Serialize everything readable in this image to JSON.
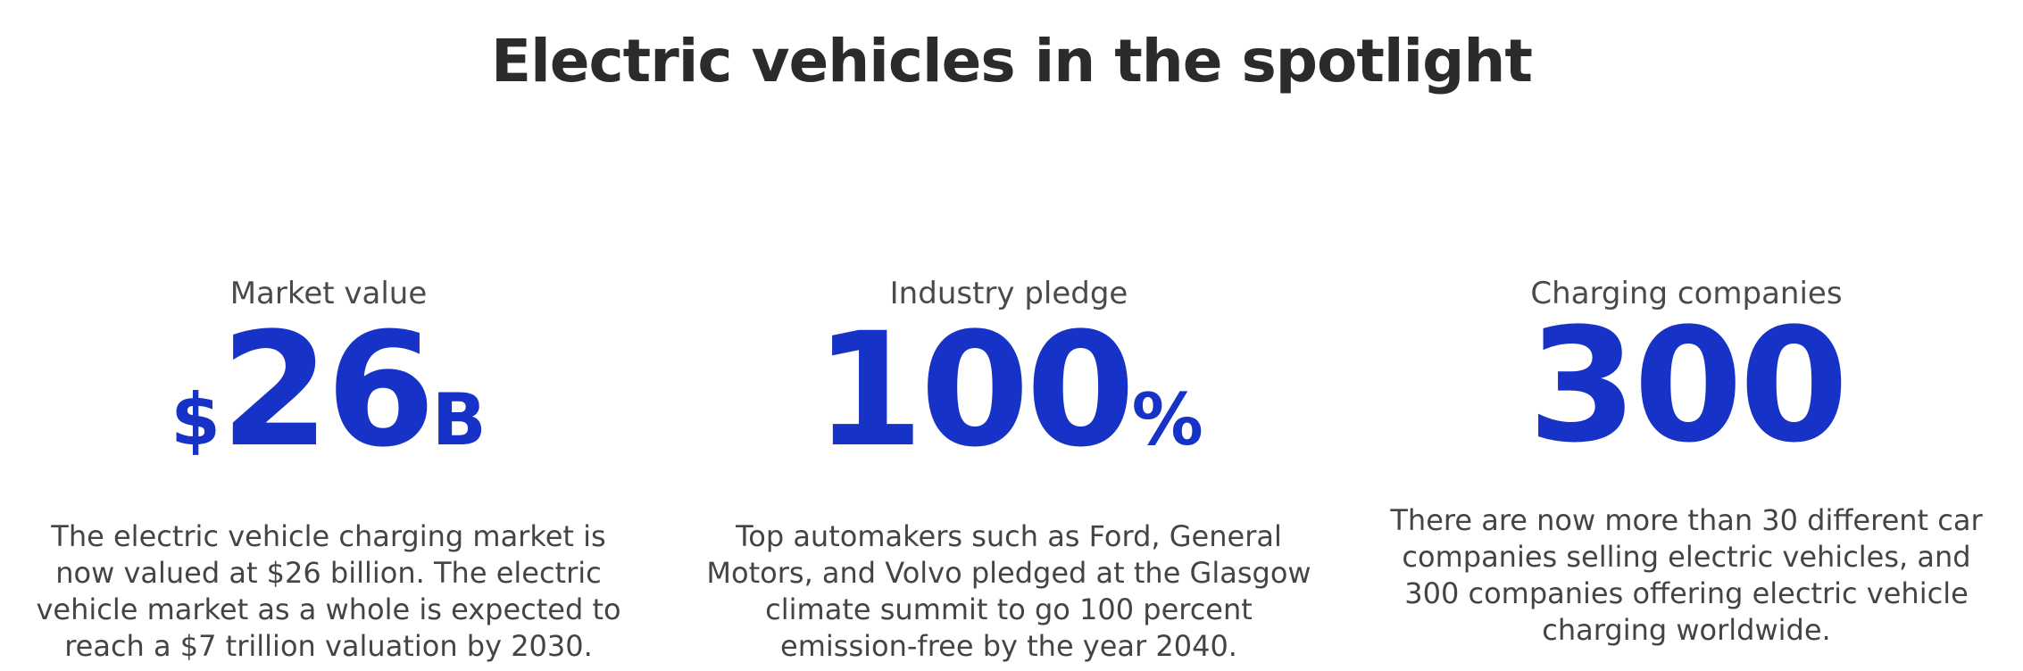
{
  "header": {
    "title": "Electric vehicles in the spotlight"
  },
  "stats": [
    {
      "label": "Market value",
      "prefix": "$",
      "number": "26",
      "suffix": "B",
      "description": "The electric vehicle charging market is now valued at $26 billion. The electric vehicle market as a whole is expected to reach a $7 trillion valuation by 2030."
    },
    {
      "label": "Industry pledge",
      "number": "100",
      "suffix": "%",
      "description": "Top automakers such as Ford, General Motors, and Volvo pledged at the Glasgow climate summit to go 100 percent emission-free by the year 2040."
    },
    {
      "label": "Charging companies",
      "number": "300",
      "description": "There are now more than 30 different car companies selling electric vehicles, and 300 companies offering electric vehicle charging worldwide."
    }
  ]
}
